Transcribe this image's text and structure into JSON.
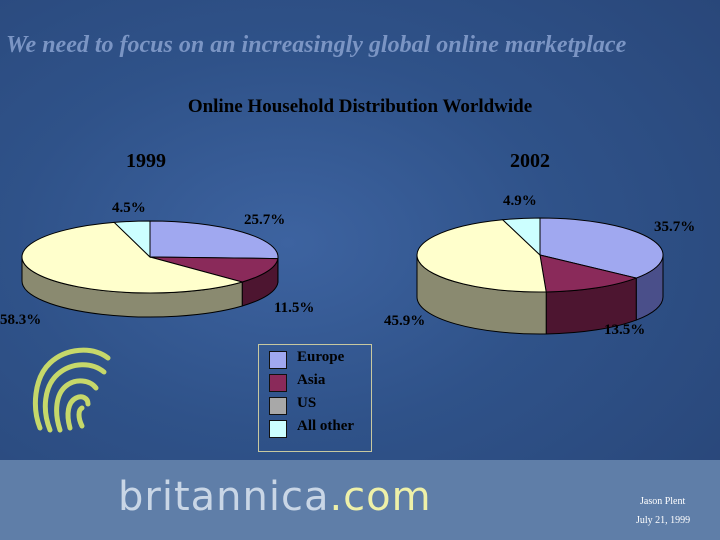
{
  "slide": {
    "headline": "We need to focus on an increasingly global online marketplace",
    "brand_name": "britannica",
    "brand_suffix": ".com",
    "author": "Jason Plent",
    "date": "July 21, 1999"
  },
  "colors": {
    "background": "#2f5289",
    "europe": "#a0a8f0",
    "asia": "#8a2a5a",
    "us": "#ffffcc",
    "all_other": "#ccffff",
    "headline": "#7b95c4",
    "logo": "#c6d86a"
  },
  "legend": [
    {
      "label": "Europe",
      "color": "#a0a8f0"
    },
    {
      "label": "Asia",
      "color": "#8a2a5a"
    },
    {
      "label": "US",
      "color": "#a8a8a8"
    },
    {
      "label": "All other",
      "color": "#ccffff"
    }
  ],
  "icons": [
    "fingerprint-logo-icon"
  ],
  "chart_data": [
    {
      "type": "pie",
      "title": "Online Household Distribution Worldwide",
      "subtitle": "1999",
      "categories": [
        "Europe",
        "Asia",
        "US",
        "All other"
      ],
      "values": [
        25.7,
        11.5,
        58.3,
        4.5
      ],
      "data_labels": [
        "25.7%",
        "11.5%",
        "58.3%",
        "4.5%"
      ],
      "style": "3d",
      "legend": "bottom-center"
    },
    {
      "type": "pie",
      "title": "Online Household Distribution Worldwide",
      "subtitle": "2002",
      "categories": [
        "Europe",
        "Asia",
        "US",
        "All other"
      ],
      "values": [
        35.7,
        13.5,
        45.9,
        4.9
      ],
      "data_labels": [
        "35.7%",
        "13.5%",
        "45.9%",
        "4.9%"
      ],
      "style": "3d",
      "legend": "bottom-center"
    }
  ]
}
